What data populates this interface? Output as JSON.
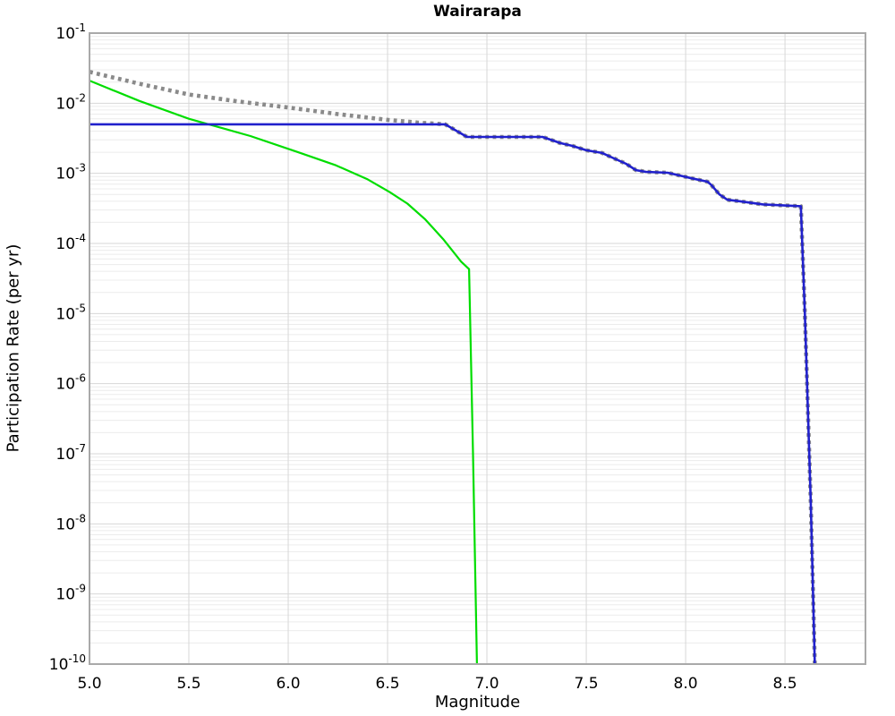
{
  "page": {
    "background": "#ffffff",
    "text_color": "#000000"
  },
  "chart_data": {
    "type": "line",
    "title": "Wairarapa",
    "xlabel": "Magnitude",
    "ylabel": "Participation Rate (per yr)",
    "x_range": [
      5.0,
      8.905
    ],
    "y_scale": "log",
    "y_log_range": [
      -1,
      -10
    ],
    "x_ticks": [
      5.0,
      5.5,
      6.0,
      6.5,
      7.0,
      7.5,
      8.0,
      8.5
    ],
    "x_tick_labels": [
      "5.0",
      "5.5",
      "6.0",
      "6.5",
      "7.0",
      "7.5",
      "8.0",
      "8.5"
    ],
    "y_tick_exponents": [
      -1,
      -2,
      -3,
      -4,
      -5,
      -6,
      -7,
      -8,
      -9,
      -10
    ],
    "grid": {
      "show": true,
      "major_color": "#d7d7d7",
      "minor_color": "#ececec",
      "frame_color": "#a9a9a9"
    },
    "legend": "none",
    "series": [
      {
        "name": "green-solid-line",
        "style": "solid",
        "color": "#00dd00",
        "width": 2.2,
        "points": [
          [
            5.0,
            0.021
          ],
          [
            5.25,
            0.0108
          ],
          [
            5.5,
            0.006
          ],
          [
            5.6,
            0.005
          ],
          [
            5.81,
            0.0034
          ],
          [
            6.05,
            0.002
          ],
          [
            6.24,
            0.0013
          ],
          [
            6.4,
            0.00082
          ],
          [
            6.51,
            0.00054
          ],
          [
            6.6,
            0.00037
          ],
          [
            6.69,
            0.00022
          ],
          [
            6.78,
            0.000115
          ],
          [
            6.87,
            5.5e-05
          ],
          [
            6.91,
            4.3e-05
          ],
          [
            6.93,
            1e-07
          ],
          [
            6.95,
            1e-10
          ]
        ]
      },
      {
        "name": "gray-dotted-line",
        "style": "dotted",
        "color": "#8a8a8a",
        "width": 4.6,
        "points": [
          [
            5.0,
            0.028
          ],
          [
            5.25,
            0.019
          ],
          [
            5.5,
            0.0133
          ],
          [
            5.75,
            0.0106
          ],
          [
            6.0,
            0.0087
          ],
          [
            6.25,
            0.007
          ],
          [
            6.5,
            0.0058
          ],
          [
            6.65,
            0.0053
          ],
          [
            6.79,
            0.005
          ],
          [
            6.9,
            0.0033
          ],
          [
            7.28,
            0.0033
          ],
          [
            7.37,
            0.0027
          ],
          [
            7.43,
            0.00246
          ],
          [
            7.5,
            0.00213
          ],
          [
            7.58,
            0.00195
          ],
          [
            7.63,
            0.00168
          ],
          [
            7.7,
            0.00137
          ],
          [
            7.75,
            0.00111
          ],
          [
            7.8,
            0.00105
          ],
          [
            7.91,
            0.00102
          ],
          [
            8.03,
            0.00085
          ],
          [
            8.11,
            0.00076
          ],
          [
            8.13,
            0.00068
          ],
          [
            8.17,
            0.0005
          ],
          [
            8.21,
            0.00042
          ],
          [
            8.27,
            0.0004
          ],
          [
            8.39,
            0.00036
          ],
          [
            8.58,
            0.00034
          ],
          [
            8.6,
            1e-05
          ],
          [
            8.63,
            2e-08
          ],
          [
            8.65,
            1e-10
          ]
        ]
      },
      {
        "name": "blue-solid-line",
        "style": "solid",
        "color": "#2121cc",
        "width": 2.6,
        "points": [
          [
            5.0,
            0.005
          ],
          [
            6.79,
            0.005
          ],
          [
            6.9,
            0.0033
          ],
          [
            7.28,
            0.0033
          ],
          [
            7.37,
            0.0027
          ],
          [
            7.43,
            0.00246
          ],
          [
            7.5,
            0.00213
          ],
          [
            7.58,
            0.00195
          ],
          [
            7.63,
            0.00168
          ],
          [
            7.7,
            0.00137
          ],
          [
            7.75,
            0.00111
          ],
          [
            7.8,
            0.00105
          ],
          [
            7.91,
            0.00102
          ],
          [
            8.03,
            0.00085
          ],
          [
            8.11,
            0.00076
          ],
          [
            8.13,
            0.00068
          ],
          [
            8.17,
            0.0005
          ],
          [
            8.21,
            0.00042
          ],
          [
            8.27,
            0.0004
          ],
          [
            8.39,
            0.00036
          ],
          [
            8.58,
            0.00034
          ],
          [
            8.6,
            1e-05
          ],
          [
            8.63,
            2e-08
          ],
          [
            8.65,
            1e-10
          ]
        ]
      }
    ]
  }
}
